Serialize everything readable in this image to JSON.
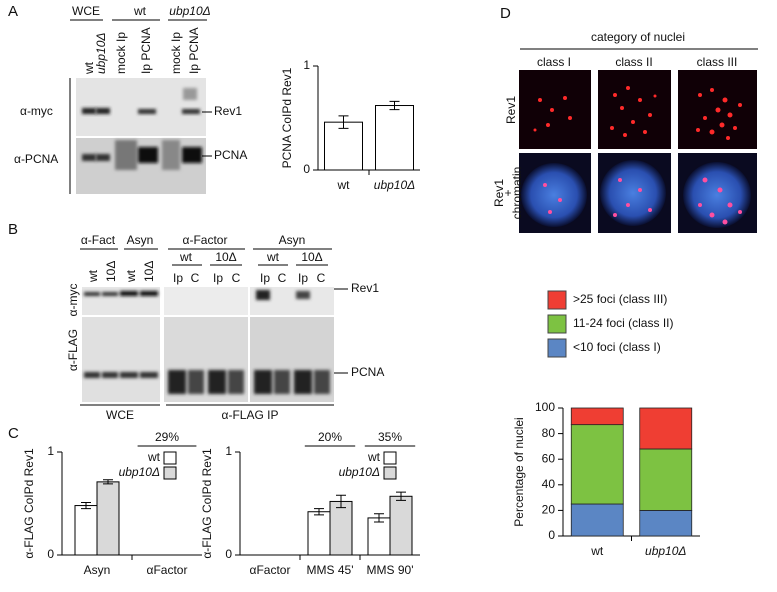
{
  "panel_labels": [
    "A",
    "B",
    "C",
    "D"
  ],
  "panel_a": {
    "groups": [
      "WCE",
      "wt",
      "ubp10Δ"
    ],
    "lanes": [
      "wt",
      "ubp10Δ",
      "mock Ip",
      "Ip PCNA",
      "mock Ip",
      "Ip PCNA"
    ],
    "rows": [
      "α-myc",
      "α-PCNA"
    ],
    "bands": [
      "Rev1",
      "PCNA"
    ]
  },
  "panel_b": {
    "groups": [
      "α-Fact",
      "Asyn",
      "α-Factor",
      "Asyn"
    ],
    "genotypes": [
      "wt",
      "10Δ",
      "wt",
      "10Δ",
      "wt",
      "10Δ",
      "wt",
      "10Δ"
    ],
    "fractions": [
      "Ip",
      "C",
      "Ip",
      "C",
      "Ip",
      "C",
      "Ip",
      "C"
    ],
    "rows": [
      "α-myc",
      "α-FLAG"
    ],
    "bands": [
      "Rev1",
      "PCNA"
    ],
    "footer": [
      "WCE",
      "α-FLAG IP"
    ]
  },
  "panel_d": {
    "header": "category of nuclei",
    "classes": [
      "class I",
      "class II",
      "class III"
    ],
    "row_label": "Rev1",
    "merge_label": [
      "Rev1",
      "+",
      "chromatin"
    ]
  },
  "chart_data": [
    {
      "type": "bar",
      "ylabel": "PCNA CoIPd Rev1",
      "categories": [
        "wt",
        "ubp10Δ"
      ],
      "values": [
        0.46,
        0.62
      ],
      "errors": [
        0.06,
        0.04
      ],
      "color": "#ffffff",
      "ylim": [
        0,
        1
      ],
      "yticks": [
        0,
        1
      ]
    },
    {
      "type": "bar",
      "ylabel": "α-FLAG CoIPd Rev1",
      "categories": [
        "Asyn",
        "αFactor"
      ],
      "series": [
        {
          "name": "wt",
          "color": "#ffffff",
          "values": [
            0.48,
            0
          ],
          "errors": [
            0.03,
            0
          ]
        },
        {
          "name": "ubp10Δ",
          "color": "#d9d9d9",
          "values": [
            0.71,
            0
          ],
          "errors": [
            0.02,
            0
          ]
        }
      ],
      "annotations": [
        "29%"
      ],
      "ylim": [
        0,
        1
      ],
      "yticks": [
        0,
        1
      ]
    },
    {
      "type": "bar",
      "ylabel": "α-FLAG CoIPd Rev1",
      "categories": [
        "αFactor",
        "MMS 45'",
        "MMS 90'"
      ],
      "series": [
        {
          "name": "wt",
          "color": "#ffffff",
          "values": [
            0,
            0.42,
            0.36
          ],
          "errors": [
            0,
            0.03,
            0.04
          ]
        },
        {
          "name": "ubp10Δ",
          "color": "#d9d9d9",
          "values": [
            0,
            0.52,
            0.57
          ],
          "errors": [
            0,
            0.06,
            0.04
          ]
        }
      ],
      "annotations": [
        "20%",
        "35%"
      ],
      "ylim": [
        0,
        1
      ],
      "yticks": [
        0,
        1
      ]
    },
    {
      "type": "stacked_bar",
      "ylabel": "Percentage of nuclei",
      "categories": [
        "wt",
        "ubp10Δ"
      ],
      "series": [
        {
          "name": "<10 foci (class I)",
          "color": "#5b86c4",
          "values": [
            25,
            20
          ]
        },
        {
          "name": "11-24 foci (class II)",
          "color": "#7dc242",
          "values": [
            62,
            48
          ]
        },
        {
          "name": ">25 foci (class III)",
          "color": "#ef3e33",
          "values": [
            13,
            32
          ]
        }
      ],
      "ylim": [
        0,
        100
      ],
      "yticks": [
        0,
        20,
        40,
        60,
        80,
        100
      ]
    }
  ]
}
